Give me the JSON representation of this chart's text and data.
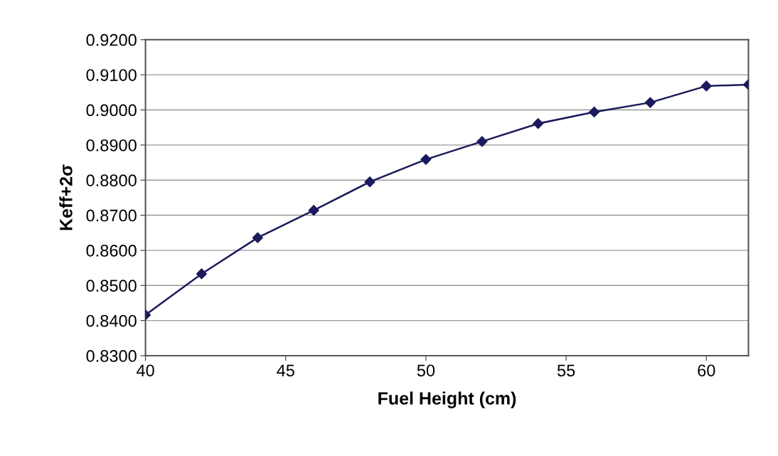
{
  "chart_data": {
    "type": "line",
    "xlabel": "Fuel Height (cm)",
    "ylabel": "Keff+2σ",
    "x": [
      40,
      42,
      44,
      46,
      48,
      50,
      52,
      54,
      56,
      58,
      60,
      61.5
    ],
    "series": [
      {
        "color": "#1a1a5c",
        "values": [
          0.8416,
          0.8533,
          0.8636,
          0.8714,
          0.8795,
          0.8859,
          0.891,
          0.8961,
          0.8994,
          0.9021,
          0.9068,
          0.9072
        ]
      }
    ],
    "marker": "diamond",
    "line_style": "solid",
    "grid": "y",
    "legend": false,
    "xlim": [
      40,
      61.5
    ],
    "xticks": [
      40,
      45,
      50,
      55,
      60
    ],
    "ylim": [
      0.83,
      0.92
    ],
    "yticks": [
      {
        "value": 0.83,
        "label": "0.8300"
      },
      {
        "value": 0.84,
        "label": "0.8400"
      },
      {
        "value": 0.85,
        "label": "0.8500"
      },
      {
        "value": 0.86,
        "label": "0.8600"
      },
      {
        "value": 0.87,
        "label": "0.8700"
      },
      {
        "value": 0.88,
        "label": "0.8800"
      },
      {
        "value": 0.89,
        "label": "0.8900"
      },
      {
        "value": 0.9,
        "label": "0.9000"
      },
      {
        "value": 0.91,
        "label": "0.9100"
      },
      {
        "value": 0.92,
        "label": "0.9200"
      }
    ]
  }
}
